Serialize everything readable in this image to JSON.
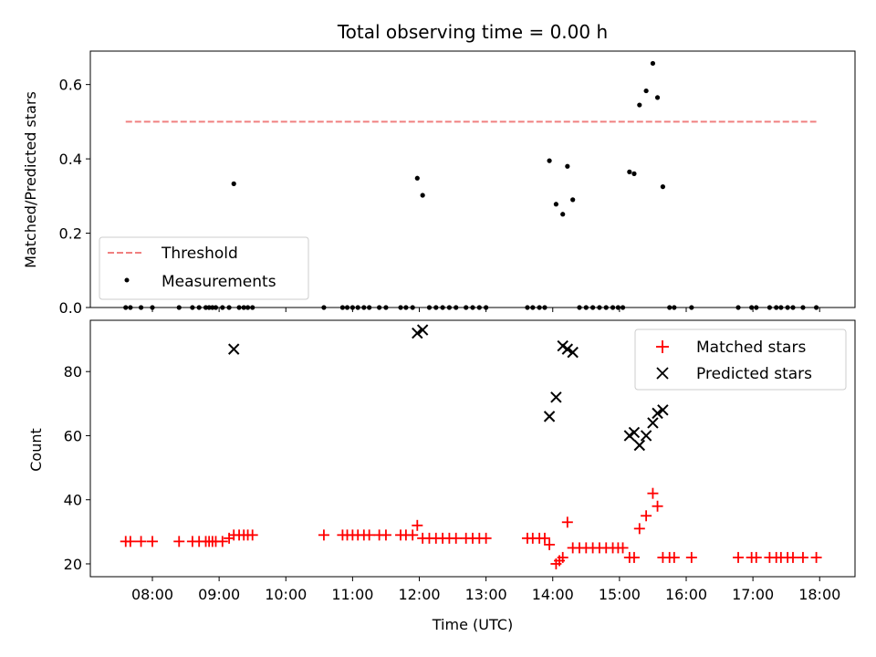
{
  "chart_data": [
    {
      "type": "scatter",
      "title": "Total observing time = 0.00 h",
      "xlabel": "",
      "ylabel": "Matched/Predicted stars",
      "ylim": [
        0,
        0.69
      ],
      "xlim_hours": [
        7.07,
        18.53
      ],
      "yticks": [
        "0.0",
        "0.2",
        "0.4",
        "0.6"
      ],
      "ytick_values": [
        0,
        0.2,
        0.4,
        0.6
      ],
      "legend": {
        "position": "lower-left",
        "entries": [
          "Threshold",
          "Measurements"
        ]
      },
      "threshold": {
        "name": "Threshold",
        "value": 0.5,
        "x_range": [
          7.6,
          17.95
        ],
        "color": "#f08080",
        "style": "dashed"
      },
      "measurements": {
        "name": "Measurements",
        "color": "#000000",
        "points": [
          [
            7.6,
            0
          ],
          [
            7.67,
            0
          ],
          [
            7.83,
            0
          ],
          [
            8.0,
            0
          ],
          [
            8.4,
            0
          ],
          [
            8.6,
            0
          ],
          [
            8.7,
            0
          ],
          [
            8.8,
            0
          ],
          [
            8.85,
            0
          ],
          [
            8.9,
            0
          ],
          [
            8.95,
            0
          ],
          [
            9.05,
            0
          ],
          [
            9.15,
            0
          ],
          [
            9.22,
            0.333
          ],
          [
            9.3,
            0
          ],
          [
            9.37,
            0
          ],
          [
            9.43,
            0
          ],
          [
            9.5,
            0
          ],
          [
            10.57,
            0
          ],
          [
            10.85,
            0
          ],
          [
            10.92,
            0
          ],
          [
            11.0,
            0
          ],
          [
            11.08,
            0
          ],
          [
            11.17,
            0
          ],
          [
            11.25,
            0
          ],
          [
            11.4,
            0
          ],
          [
            11.5,
            0
          ],
          [
            11.72,
            0
          ],
          [
            11.8,
            0
          ],
          [
            11.9,
            0
          ],
          [
            11.97,
            0.348
          ],
          [
            12.05,
            0.302
          ],
          [
            12.15,
            0
          ],
          [
            12.25,
            0
          ],
          [
            12.35,
            0
          ],
          [
            12.45,
            0
          ],
          [
            12.55,
            0
          ],
          [
            12.7,
            0
          ],
          [
            12.8,
            0
          ],
          [
            12.9,
            0
          ],
          [
            13.0,
            0
          ],
          [
            13.62,
            0
          ],
          [
            13.7,
            0
          ],
          [
            13.8,
            0
          ],
          [
            13.88,
            0
          ],
          [
            13.95,
            0.395
          ],
          [
            14.05,
            0.278
          ],
          [
            14.15,
            0.251
          ],
          [
            14.22,
            0.38
          ],
          [
            14.3,
            0.29
          ],
          [
            14.4,
            0
          ],
          [
            14.5,
            0
          ],
          [
            14.6,
            0
          ],
          [
            14.7,
            0
          ],
          [
            14.8,
            0
          ],
          [
            14.9,
            0
          ],
          [
            14.98,
            0
          ],
          [
            15.05,
            0
          ],
          [
            15.15,
            0.365
          ],
          [
            15.22,
            0.36
          ],
          [
            15.3,
            0.545
          ],
          [
            15.4,
            0.583
          ],
          [
            15.5,
            0.657
          ],
          [
            15.57,
            0.565
          ],
          [
            15.65,
            0.325
          ],
          [
            15.75,
            0
          ],
          [
            15.82,
            0
          ],
          [
            16.08,
            0
          ],
          [
            16.78,
            0
          ],
          [
            16.98,
            0
          ],
          [
            17.05,
            0
          ],
          [
            17.25,
            0
          ],
          [
            17.35,
            0
          ],
          [
            17.42,
            0
          ],
          [
            17.52,
            0
          ],
          [
            17.6,
            0
          ],
          [
            17.75,
            0
          ],
          [
            17.95,
            0
          ]
        ]
      }
    },
    {
      "type": "scatter",
      "title": "",
      "xlabel": "Time (UTC)",
      "ylabel": "Count",
      "ylim": [
        16,
        96
      ],
      "xlim_hours": [
        7.07,
        18.53
      ],
      "yticks": [
        "20",
        "40",
        "60",
        "80"
      ],
      "ytick_values": [
        20,
        40,
        60,
        80
      ],
      "xticks": [
        "08:00",
        "09:00",
        "10:00",
        "11:00",
        "12:00",
        "13:00",
        "14:00",
        "15:00",
        "16:00",
        "17:00",
        "18:00"
      ],
      "xtick_values": [
        8,
        9,
        10,
        11,
        12,
        13,
        14,
        15,
        16,
        17,
        18
      ],
      "legend": {
        "position": "upper-right",
        "entries": [
          "Matched stars",
          "Predicted stars"
        ]
      },
      "matched": {
        "name": "Matched stars",
        "color": "#ff0000",
        "marker": "+",
        "points": [
          [
            7.6,
            27
          ],
          [
            7.67,
            27
          ],
          [
            7.83,
            27
          ],
          [
            8.0,
            27
          ],
          [
            8.4,
            27
          ],
          [
            8.6,
            27
          ],
          [
            8.7,
            27
          ],
          [
            8.8,
            27
          ],
          [
            8.85,
            27
          ],
          [
            8.9,
            27
          ],
          [
            8.95,
            27
          ],
          [
            9.05,
            27
          ],
          [
            9.15,
            28
          ],
          [
            9.22,
            29
          ],
          [
            9.3,
            29
          ],
          [
            9.37,
            29
          ],
          [
            9.43,
            29
          ],
          [
            9.5,
            29
          ],
          [
            10.57,
            29
          ],
          [
            10.85,
            29
          ],
          [
            10.92,
            29
          ],
          [
            11.0,
            29
          ],
          [
            11.08,
            29
          ],
          [
            11.17,
            29
          ],
          [
            11.25,
            29
          ],
          [
            11.4,
            29
          ],
          [
            11.5,
            29
          ],
          [
            11.72,
            29
          ],
          [
            11.8,
            29
          ],
          [
            11.9,
            29
          ],
          [
            11.97,
            32
          ],
          [
            12.05,
            28
          ],
          [
            12.15,
            28
          ],
          [
            12.25,
            28
          ],
          [
            12.35,
            28
          ],
          [
            12.45,
            28
          ],
          [
            12.55,
            28
          ],
          [
            12.7,
            28
          ],
          [
            12.8,
            28
          ],
          [
            12.9,
            28
          ],
          [
            13.0,
            28
          ],
          [
            13.62,
            28
          ],
          [
            13.7,
            28
          ],
          [
            13.8,
            28
          ],
          [
            13.88,
            28
          ],
          [
            13.95,
            26
          ],
          [
            14.05,
            20
          ],
          [
            14.1,
            21
          ],
          [
            14.15,
            22
          ],
          [
            14.22,
            33
          ],
          [
            14.3,
            25
          ],
          [
            14.4,
            25
          ],
          [
            14.5,
            25
          ],
          [
            14.6,
            25
          ],
          [
            14.7,
            25
          ],
          [
            14.8,
            25
          ],
          [
            14.9,
            25
          ],
          [
            14.98,
            25
          ],
          [
            15.05,
            25
          ],
          [
            15.15,
            22
          ],
          [
            15.22,
            22
          ],
          [
            15.3,
            31
          ],
          [
            15.4,
            35
          ],
          [
            15.5,
            42
          ],
          [
            15.57,
            38
          ],
          [
            15.65,
            22
          ],
          [
            15.75,
            22
          ],
          [
            15.82,
            22
          ],
          [
            16.08,
            22
          ],
          [
            16.78,
            22
          ],
          [
            16.98,
            22
          ],
          [
            17.05,
            22
          ],
          [
            17.25,
            22
          ],
          [
            17.35,
            22
          ],
          [
            17.42,
            22
          ],
          [
            17.52,
            22
          ],
          [
            17.6,
            22
          ],
          [
            17.75,
            22
          ],
          [
            17.95,
            22
          ]
        ]
      },
      "predicted": {
        "name": "Predicted stars",
        "color": "#000000",
        "marker": "x",
        "points": [
          [
            9.22,
            87
          ],
          [
            11.97,
            92
          ],
          [
            12.05,
            93
          ],
          [
            13.95,
            66
          ],
          [
            14.05,
            72
          ],
          [
            14.15,
            88
          ],
          [
            14.22,
            87
          ],
          [
            14.3,
            86
          ],
          [
            15.15,
            60
          ],
          [
            15.22,
            61
          ],
          [
            15.3,
            57
          ],
          [
            15.4,
            60
          ],
          [
            15.5,
            64
          ],
          [
            15.57,
            67
          ],
          [
            15.65,
            68
          ]
        ]
      }
    }
  ]
}
